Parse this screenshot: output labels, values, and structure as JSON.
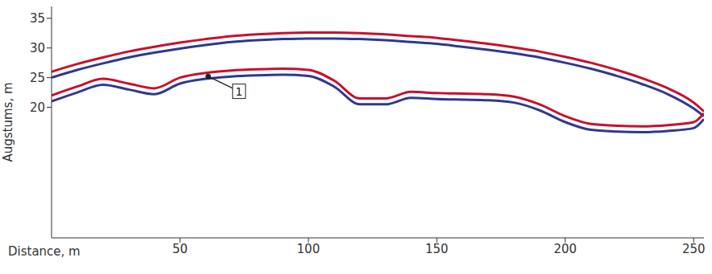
{
  "chart_data": {
    "type": "line",
    "xlabel": "Distance, m",
    "ylabel": "Augstums, m",
    "x": [
      0,
      10,
      20,
      30,
      40,
      50,
      60,
      70,
      80,
      90,
      100,
      110,
      120,
      130,
      140,
      150,
      160,
      170,
      180,
      190,
      200,
      210,
      220,
      230,
      240,
      250,
      254
    ],
    "series": [
      {
        "color": "#c8102e",
        "values": [
          26,
          27.3,
          28.4,
          29.4,
          30.2,
          30.9,
          31.5,
          32,
          32.3,
          32.5,
          32.6,
          32.6,
          32.5,
          32.3,
          32,
          31.7,
          31.2,
          30.7,
          30.1,
          29.4,
          28.5,
          27.5,
          26.3,
          24.9,
          23.2,
          20.8,
          19.3
        ]
      },
      {
        "color": "#2b3a8f",
        "values": [
          25,
          26.3,
          27.4,
          28.4,
          29.2,
          29.9,
          30.5,
          31,
          31.3,
          31.5,
          31.6,
          31.6,
          31.5,
          31.3,
          31,
          30.7,
          30.2,
          29.7,
          29.1,
          28.4,
          27.5,
          26.5,
          25.3,
          23.9,
          22.2,
          19.8,
          18.5
        ]
      },
      {
        "color": "#c8102e",
        "values": [
          22,
          23.5,
          24.8,
          24,
          23.2,
          25,
          25.8,
          26.2,
          26.4,
          26.5,
          26.3,
          24.5,
          21.5,
          21.5,
          22.6,
          22.4,
          22.3,
          22.2,
          21.8,
          20.5,
          18.5,
          17.2,
          16.9,
          16.8,
          17,
          17.5,
          19
        ]
      },
      {
        "color": "#2b3a8f",
        "values": [
          21,
          22.5,
          23.8,
          23,
          22.2,
          24,
          24.8,
          25.2,
          25.4,
          25.5,
          25.3,
          23.5,
          20.5,
          20.5,
          21.6,
          21.4,
          21.3,
          21.2,
          20.8,
          19.5,
          17.5,
          16.2,
          15.9,
          15.8,
          16,
          16.5,
          18
        ]
      }
    ],
    "xlim": [
      0,
      254
    ],
    "xticks": [
      50,
      100,
      150,
      200,
      250
    ],
    "ylim": [
      -2,
      37
    ],
    "yticks": [
      20,
      25,
      30,
      35
    ],
    "grid": false,
    "annotations": [
      {
        "text": "1",
        "x": 73,
        "y": 22.7,
        "arrow_to": [
          61,
          25.2
        ]
      }
    ]
  }
}
